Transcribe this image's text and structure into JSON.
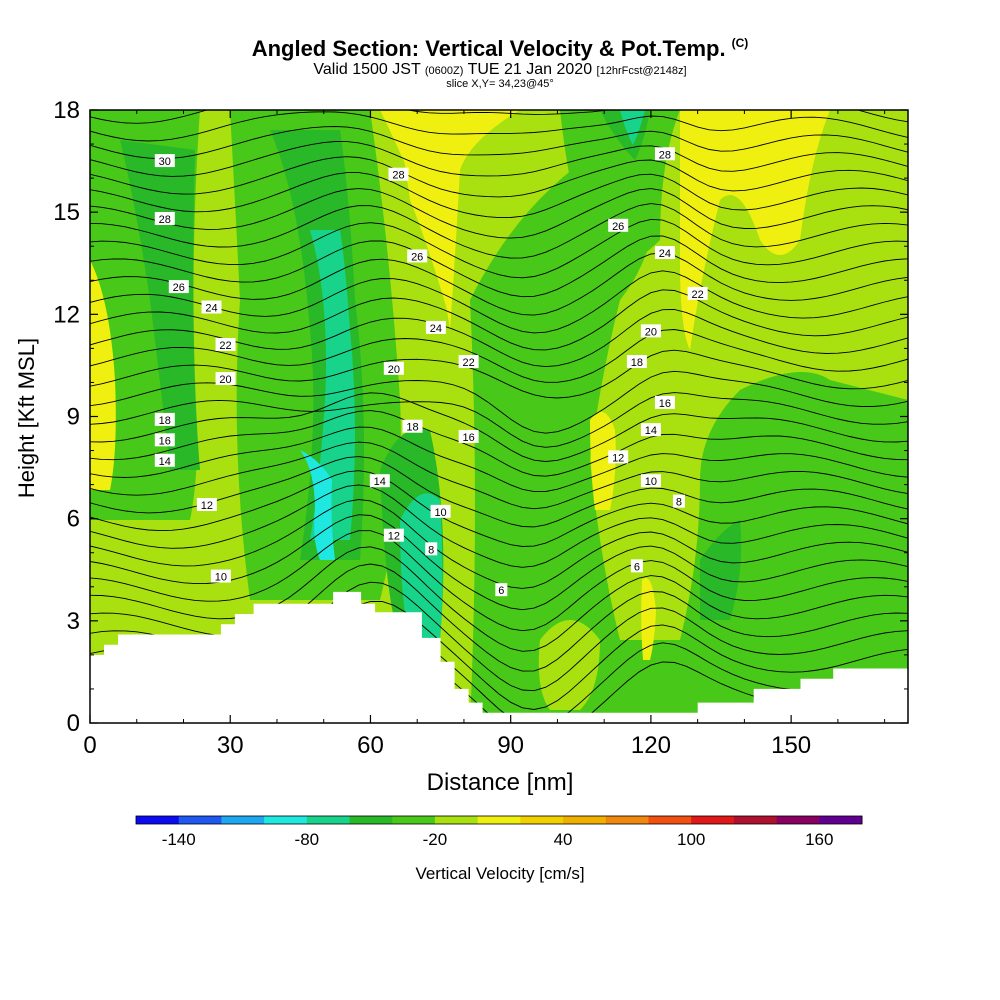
{
  "title": {
    "main": "Angled Section: Vertical Velocity & Pot.Temp.",
    "copyright": "(C)",
    "valid_prefix": "Valid 1500 JST",
    "utc": "(0600Z)",
    "valid_date": "TUE 21 Jan 2020",
    "fcst": "[12hrFcst@2148z]",
    "slice": "slice X,Y= 34,23@45°"
  },
  "chart_data": {
    "type": "contour",
    "xlabel": "Distance [nm]",
    "ylabel": "Height [Kft MSL]",
    "xlim": [
      0,
      175
    ],
    "ylim": [
      0,
      18
    ],
    "xticks": [
      "0",
      "30",
      "60",
      "90",
      "120",
      "150"
    ],
    "yticks": [
      "0",
      "3",
      "6",
      "9",
      "12",
      "15",
      "18"
    ],
    "terrain": [
      [
        0,
        2
      ],
      [
        3,
        2
      ],
      [
        3,
        2.3
      ],
      [
        6,
        2.3
      ],
      [
        6,
        2.6
      ],
      [
        28,
        2.6
      ],
      [
        28,
        2.9
      ],
      [
        31,
        2.9
      ],
      [
        31,
        3.2
      ],
      [
        35,
        3.2
      ],
      [
        35,
        3.5
      ],
      [
        52,
        3.5
      ],
      [
        52,
        3.85
      ],
      [
        58,
        3.85
      ],
      [
        58,
        3.5
      ],
      [
        61,
        3.5
      ],
      [
        61,
        3.25
      ],
      [
        71,
        3.25
      ],
      [
        71,
        2.5
      ],
      [
        75,
        2.5
      ],
      [
        75,
        1.8
      ],
      [
        78,
        1.8
      ],
      [
        78,
        1
      ],
      [
        81,
        1
      ],
      [
        81,
        0.6
      ],
      [
        84,
        0.6
      ],
      [
        84,
        0.3
      ],
      [
        130,
        0.3
      ],
      [
        130,
        0.6
      ],
      [
        142,
        0.6
      ],
      [
        142,
        1
      ],
      [
        152,
        1
      ],
      [
        152,
        1.3
      ],
      [
        159,
        1.3
      ],
      [
        159,
        1.6
      ],
      [
        175,
        1.6
      ]
    ],
    "theta_labels": [
      {
        "text": "30",
        "x": 16,
        "y": 16.5
      },
      {
        "text": "28",
        "x": 16,
        "y": 14.8
      },
      {
        "text": "26",
        "x": 19,
        "y": 12.8
      },
      {
        "text": "24",
        "x": 26,
        "y": 12.2
      },
      {
        "text": "22",
        "x": 29,
        "y": 11.1
      },
      {
        "text": "20",
        "x": 29,
        "y": 10.1
      },
      {
        "text": "18",
        "x": 16,
        "y": 8.9
      },
      {
        "text": "16",
        "x": 16,
        "y": 8.3
      },
      {
        "text": "14",
        "x": 16,
        "y": 7.7
      },
      {
        "text": "12",
        "x": 25,
        "y": 6.4
      },
      {
        "text": "10",
        "x": 28,
        "y": 4.3
      },
      {
        "text": "28",
        "x": 66,
        "y": 16.1
      },
      {
        "text": "26",
        "x": 70,
        "y": 13.7
      },
      {
        "text": "24",
        "x": 74,
        "y": 11.6
      },
      {
        "text": "22",
        "x": 81,
        "y": 10.6
      },
      {
        "text": "20",
        "x": 65,
        "y": 10.4
      },
      {
        "text": "18",
        "x": 69,
        "y": 8.7
      },
      {
        "text": "16",
        "x": 81,
        "y": 8.4
      },
      {
        "text": "14",
        "x": 62,
        "y": 7.1
      },
      {
        "text": "12",
        "x": 65,
        "y": 5.5
      },
      {
        "text": "10",
        "x": 75,
        "y": 6.2
      },
      {
        "text": "8",
        "x": 73,
        "y": 5.1
      },
      {
        "text": "6",
        "x": 88,
        "y": 3.9
      },
      {
        "text": "28",
        "x": 123,
        "y": 16.7
      },
      {
        "text": "26",
        "x": 113,
        "y": 14.6
      },
      {
        "text": "24",
        "x": 123,
        "y": 13.8
      },
      {
        "text": "22",
        "x": 130,
        "y": 12.6
      },
      {
        "text": "20",
        "x": 120,
        "y": 11.5
      },
      {
        "text": "18",
        "x": 117,
        "y": 10.6
      },
      {
        "text": "16",
        "x": 123,
        "y": 9.4
      },
      {
        "text": "14",
        "x": 120,
        "y": 8.6
      },
      {
        "text": "12",
        "x": 113,
        "y": 7.8
      },
      {
        "text": "10",
        "x": 120,
        "y": 7.1
      },
      {
        "text": "8",
        "x": 126,
        "y": 6.5
      },
      {
        "text": "6",
        "x": 117,
        "y": 4.6
      }
    ]
  },
  "colorbar": {
    "colors": [
      "#0b0bf0",
      "#1f58f0",
      "#1fa8f0",
      "#1fe8e0",
      "#18d48a",
      "#28b828",
      "#48c818",
      "#a8e010",
      "#f0f010",
      "#f0d000",
      "#f0b000",
      "#f08810",
      "#f05010",
      "#e01818",
      "#b01030",
      "#880060",
      "#600090"
    ],
    "tick_labels": [
      "-140",
      "-80",
      "-20",
      "40",
      "100",
      "160"
    ],
    "label": "Vertical Velocity [cm/s]"
  }
}
